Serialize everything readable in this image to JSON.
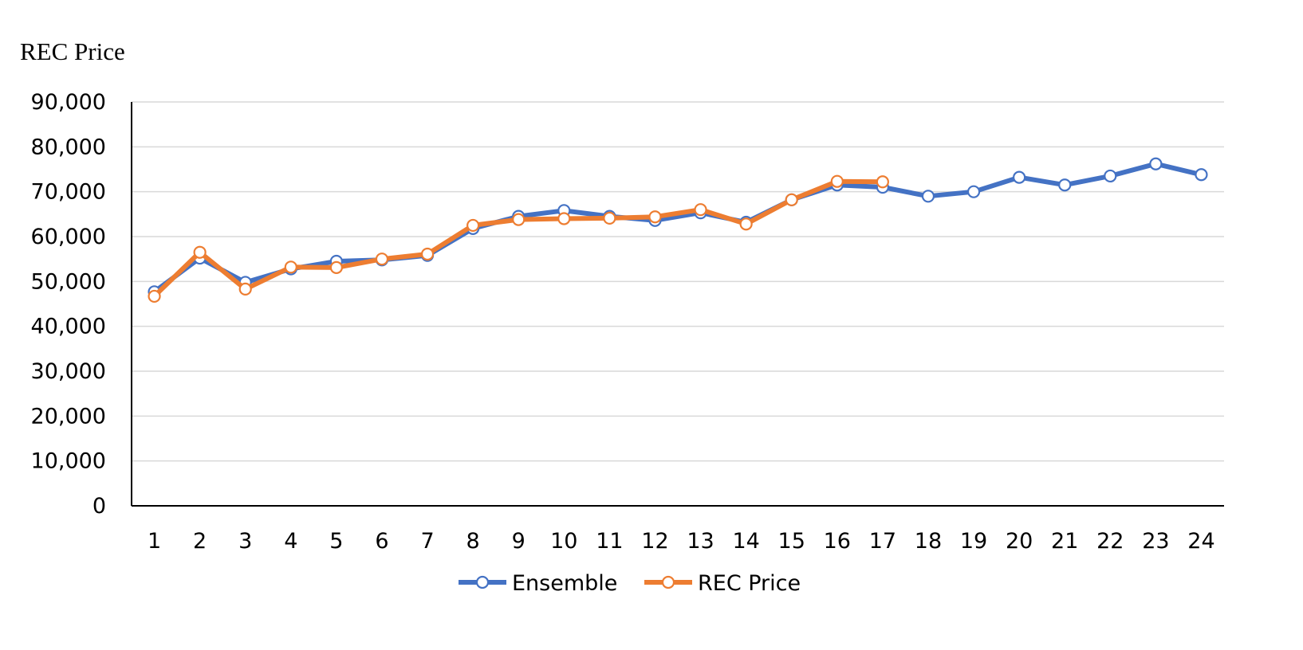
{
  "chart_data": {
    "type": "line",
    "title": "",
    "xlabel": "",
    "ylabel": "REC Price",
    "x": [
      1,
      2,
      3,
      4,
      5,
      6,
      7,
      8,
      9,
      10,
      11,
      12,
      13,
      14,
      15,
      16,
      17,
      18,
      19,
      20,
      21,
      22,
      23,
      24
    ],
    "x_tick_labels": [
      "1",
      "2",
      "3",
      "4",
      "5",
      "6",
      "7",
      "8",
      "9",
      "10",
      "11",
      "12",
      "13",
      "14",
      "15",
      "16",
      "17",
      "18",
      "19",
      "20",
      "21",
      "22",
      "23",
      "24"
    ],
    "ylim": [
      0,
      90000
    ],
    "y_ticks": [
      0,
      10000,
      20000,
      30000,
      40000,
      50000,
      60000,
      70000,
      80000,
      90000
    ],
    "y_tick_labels": [
      "0",
      "10,000",
      "20,000",
      "30,000",
      "40,000",
      "50,000",
      "60,000",
      "70,000",
      "80,000",
      "90,000"
    ],
    "grid": true,
    "legend_position": "bottom",
    "series": [
      {
        "name": "Ensemble",
        "color": "#4472C4",
        "marker": "open-circle",
        "values": [
          47700,
          55200,
          49800,
          52800,
          54500,
          54800,
          55800,
          61800,
          64500,
          65800,
          64500,
          63600,
          65300,
          63200,
          68200,
          71500,
          71000,
          69000,
          70000,
          73200,
          71500,
          73500,
          76200,
          73800
        ]
      },
      {
        "name": "REC Price",
        "color": "#ED7D31",
        "marker": "open-circle",
        "values": [
          46700,
          56500,
          48300,
          53200,
          53100,
          55000,
          56100,
          62500,
          63800,
          64000,
          64100,
          64400,
          66000,
          62800,
          68200,
          72300,
          72200,
          null,
          null,
          null,
          null,
          null,
          null,
          null
        ]
      }
    ]
  }
}
